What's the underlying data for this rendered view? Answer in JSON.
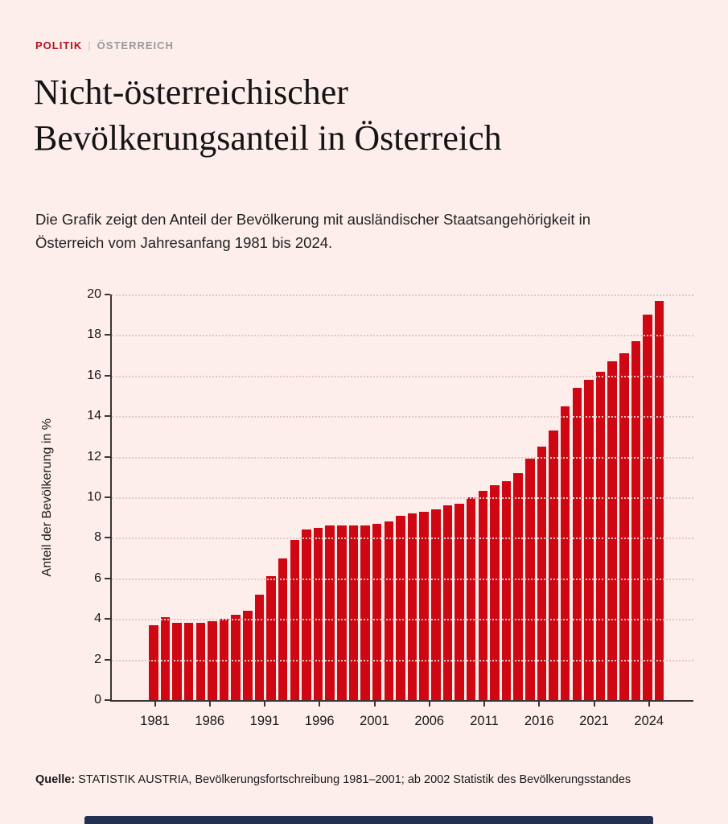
{
  "kicker": {
    "category": "POLITIK",
    "separator": "|",
    "region": "ÖSTERREICH"
  },
  "title": "Nicht-österreichischer Bevölkerungsanteil in Österreich",
  "subtitle": "Die Grafik zeigt den Anteil der Bevölkerung mit ausländischer Staatsangehörigkeit in Österreich vom Jahresanfang 1981 bis 2024.",
  "source": {
    "label": "Quelle:",
    "text": "STATISTIK AUSTRIA, Bevölkerungsfortschreibung 1981–2001; ab 2002 Statistik des Bevölkerungsstandes"
  },
  "colors": {
    "background": "#fdeeec",
    "accent_red": "#b3121c",
    "bar_red": "#ce0712",
    "footer_bar": "#233050"
  },
  "chart_data": {
    "type": "bar",
    "title": "",
    "xlabel": "",
    "ylabel": "Anteil der Bevölkerung in %",
    "ylim": [
      0,
      20
    ],
    "grid": "horizontal dotted",
    "legend": "none",
    "bar_color": "#ce0712",
    "y_ticks": [
      0,
      2,
      4,
      6,
      8,
      10,
      12,
      14,
      16,
      18,
      20
    ],
    "x_tick_labels": [
      "1981",
      "1986",
      "1991",
      "1996",
      "2001",
      "2006",
      "2011",
      "2016",
      "2021",
      "2024"
    ],
    "categories": [
      1981,
      1982,
      1983,
      1984,
      1985,
      1986,
      1987,
      1988,
      1989,
      1990,
      1991,
      1992,
      1993,
      1994,
      1995,
      1996,
      1997,
      1998,
      1999,
      2000,
      2001,
      2002,
      2003,
      2004,
      2005,
      2006,
      2007,
      2008,
      2009,
      2010,
      2011,
      2012,
      2013,
      2014,
      2015,
      2016,
      2017,
      2018,
      2019,
      2020,
      2021,
      2022,
      2023,
      2024
    ],
    "values": [
      3.7,
      4.1,
      3.8,
      3.8,
      3.8,
      3.9,
      4.0,
      4.2,
      4.4,
      5.2,
      6.1,
      7.0,
      7.9,
      8.4,
      8.5,
      8.6,
      8.6,
      8.6,
      8.6,
      8.7,
      8.8,
      9.1,
      9.2,
      9.3,
      9.4,
      9.6,
      9.7,
      10.0,
      10.3,
      10.6,
      10.8,
      11.2,
      11.9,
      12.5,
      13.3,
      14.5,
      15.4,
      15.8,
      16.2,
      16.7,
      17.1,
      17.7,
      19.0,
      19.7
    ]
  }
}
